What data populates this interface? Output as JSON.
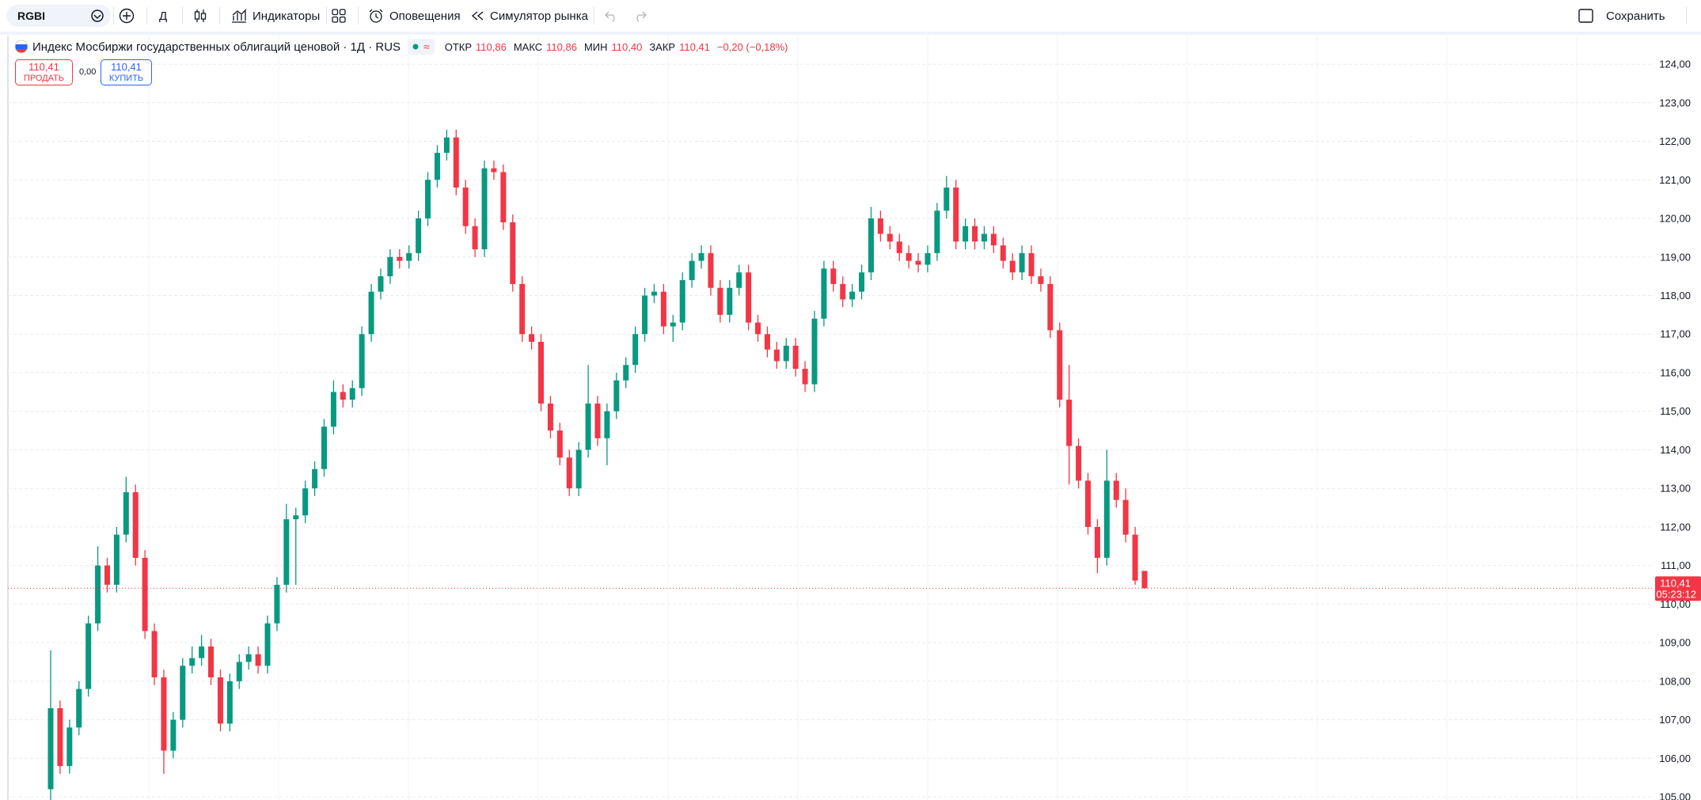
{
  "toolbar": {
    "symbol": "RGBI",
    "interval": "Д",
    "indicators": "Индикаторы",
    "alerts": "Оповещения",
    "replay": "Симулятор рынка",
    "save": "Сохранить"
  },
  "legend": {
    "title": "Индекс Мосбиржи государственных облигаций ценовой · 1Д · RUS",
    "open_label": "ОТКР",
    "open": "110,86",
    "high_label": "МАКС",
    "high": "110,86",
    "low_label": "МИН",
    "low": "110,40",
    "close_label": "ЗАКР",
    "close": "110,41",
    "change": "−0,20 (−0,18%)"
  },
  "trade": {
    "sell_price": "110,41",
    "sell": "ПРОДАТЬ",
    "spread": "0,00",
    "buy_price": "110,41",
    "buy": "КУПИТЬ"
  },
  "chart_data": {
    "type": "candlestick",
    "up_color": "#089981",
    "down_color": "#f23645",
    "candles": [
      [
        105.2,
        108.8,
        104.9,
        107.3
      ],
      [
        107.3,
        107.5,
        105.6,
        105.8
      ],
      [
        105.8,
        107.0,
        105.6,
        106.8
      ],
      [
        106.8,
        108.0,
        106.6,
        107.8
      ],
      [
        107.8,
        109.7,
        107.6,
        109.5
      ],
      [
        109.5,
        111.5,
        109.3,
        111.0
      ],
      [
        111.0,
        111.2,
        110.3,
        110.5
      ],
      [
        110.5,
        112.0,
        110.3,
        111.8
      ],
      [
        111.8,
        113.3,
        111.6,
        112.9
      ],
      [
        112.9,
        113.1,
        111.0,
        111.2
      ],
      [
        111.2,
        111.4,
        109.1,
        109.3
      ],
      [
        109.3,
        109.5,
        107.9,
        108.1
      ],
      [
        108.1,
        108.3,
        105.6,
        106.2
      ],
      [
        106.2,
        107.2,
        106.0,
        107.0
      ],
      [
        107.0,
        108.6,
        106.8,
        108.4
      ],
      [
        108.4,
        108.9,
        108.2,
        108.6
      ],
      [
        108.6,
        109.2,
        108.4,
        108.9
      ],
      [
        108.9,
        109.1,
        107.9,
        108.1
      ],
      [
        108.1,
        108.3,
        106.7,
        106.9
      ],
      [
        106.9,
        108.2,
        106.7,
        108.0
      ],
      [
        108.0,
        108.7,
        107.8,
        108.5
      ],
      [
        108.5,
        108.9,
        108.3,
        108.7
      ],
      [
        108.7,
        108.9,
        108.2,
        108.4
      ],
      [
        108.4,
        109.7,
        108.2,
        109.5
      ],
      [
        109.5,
        110.7,
        109.3,
        110.5
      ],
      [
        110.5,
        112.6,
        110.3,
        112.2
      ],
      [
        112.2,
        112.5,
        110.5,
        112.3
      ],
      [
        112.3,
        113.2,
        112.1,
        113.0
      ],
      [
        113.0,
        113.7,
        112.8,
        113.5
      ],
      [
        113.5,
        114.8,
        113.3,
        114.6
      ],
      [
        114.6,
        115.8,
        114.4,
        115.5
      ],
      [
        115.5,
        115.7,
        115.1,
        115.3
      ],
      [
        115.3,
        115.8,
        115.1,
        115.6
      ],
      [
        115.6,
        117.2,
        115.4,
        117.0
      ],
      [
        117.0,
        118.3,
        116.8,
        118.1
      ],
      [
        118.1,
        118.7,
        117.9,
        118.5
      ],
      [
        118.5,
        119.2,
        118.3,
        119.0
      ],
      [
        119.0,
        119.2,
        118.7,
        118.9
      ],
      [
        118.9,
        119.3,
        118.7,
        119.1
      ],
      [
        119.1,
        120.2,
        118.9,
        120.0
      ],
      [
        120.0,
        121.2,
        119.8,
        121.0
      ],
      [
        121.0,
        121.9,
        120.8,
        121.7
      ],
      [
        121.7,
        122.3,
        121.5,
        122.1
      ],
      [
        122.1,
        122.3,
        120.6,
        120.8
      ],
      [
        120.8,
        121.0,
        119.6,
        119.8
      ],
      [
        119.8,
        120.0,
        119.0,
        119.2
      ],
      [
        119.2,
        121.5,
        119.0,
        121.3
      ],
      [
        121.3,
        121.5,
        121.0,
        121.2
      ],
      [
        121.2,
        121.4,
        119.7,
        119.9
      ],
      [
        119.9,
        120.1,
        118.1,
        118.3
      ],
      [
        118.3,
        118.5,
        116.8,
        117.0
      ],
      [
        117.0,
        117.2,
        116.6,
        116.8
      ],
      [
        116.8,
        117.0,
        115.0,
        115.2
      ],
      [
        115.2,
        115.4,
        114.3,
        114.5
      ],
      [
        114.5,
        114.7,
        113.6,
        113.8
      ],
      [
        113.8,
        114.0,
        112.8,
        113.0
      ],
      [
        113.0,
        114.2,
        112.8,
        114.0
      ],
      [
        114.0,
        116.2,
        113.8,
        115.2
      ],
      [
        115.2,
        115.4,
        114.1,
        114.3
      ],
      [
        114.3,
        115.2,
        113.6,
        115.0
      ],
      [
        115.0,
        116.0,
        114.8,
        115.8
      ],
      [
        115.8,
        116.4,
        115.6,
        116.2
      ],
      [
        116.2,
        117.2,
        116.0,
        117.0
      ],
      [
        117.0,
        118.2,
        116.8,
        118.0
      ],
      [
        118.0,
        118.3,
        117.8,
        118.1
      ],
      [
        118.1,
        118.3,
        117.0,
        117.2
      ],
      [
        117.2,
        117.5,
        116.8,
        117.3
      ],
      [
        117.3,
        118.6,
        117.1,
        118.4
      ],
      [
        118.4,
        119.1,
        118.2,
        118.9
      ],
      [
        118.9,
        119.3,
        118.7,
        119.1
      ],
      [
        119.1,
        119.3,
        118.0,
        118.2
      ],
      [
        118.2,
        118.4,
        117.3,
        117.5
      ],
      [
        117.5,
        118.4,
        117.3,
        118.2
      ],
      [
        118.2,
        118.8,
        118.0,
        118.6
      ],
      [
        118.6,
        118.8,
        117.1,
        117.3
      ],
      [
        117.3,
        117.5,
        116.8,
        117.0
      ],
      [
        117.0,
        117.2,
        116.4,
        116.6
      ],
      [
        116.6,
        116.8,
        116.1,
        116.3
      ],
      [
        116.3,
        116.9,
        116.1,
        116.7
      ],
      [
        116.7,
        116.9,
        115.9,
        116.1
      ],
      [
        116.1,
        116.3,
        115.5,
        115.7
      ],
      [
        115.7,
        117.6,
        115.5,
        117.4
      ],
      [
        117.4,
        118.9,
        117.2,
        118.7
      ],
      [
        118.7,
        118.9,
        118.1,
        118.3
      ],
      [
        118.3,
        118.5,
        117.7,
        117.9
      ],
      [
        117.9,
        118.3,
        117.7,
        118.1
      ],
      [
        118.1,
        118.8,
        117.9,
        118.6
      ],
      [
        118.6,
        120.3,
        118.4,
        120.0
      ],
      [
        120.0,
        120.2,
        119.4,
        119.6
      ],
      [
        119.6,
        119.8,
        119.2,
        119.4
      ],
      [
        119.4,
        119.6,
        118.9,
        119.1
      ],
      [
        119.1,
        119.3,
        118.7,
        118.9
      ],
      [
        118.9,
        119.1,
        118.6,
        118.8
      ],
      [
        118.8,
        119.3,
        118.6,
        119.1
      ],
      [
        119.1,
        120.4,
        118.9,
        120.2
      ],
      [
        120.2,
        121.1,
        120.0,
        120.8
      ],
      [
        120.8,
        121.0,
        119.2,
        119.4
      ],
      [
        119.4,
        120.0,
        119.2,
        119.8
      ],
      [
        119.8,
        120.0,
        119.2,
        119.4
      ],
      [
        119.4,
        119.8,
        119.2,
        119.6
      ],
      [
        119.6,
        119.8,
        119.1,
        119.3
      ],
      [
        119.3,
        119.5,
        118.7,
        118.9
      ],
      [
        118.9,
        119.1,
        118.4,
        118.6
      ],
      [
        118.6,
        119.3,
        118.4,
        119.1
      ],
      [
        119.1,
        119.3,
        118.3,
        118.5
      ],
      [
        118.5,
        118.7,
        118.1,
        118.3
      ],
      [
        118.3,
        118.5,
        116.9,
        117.1
      ],
      [
        117.1,
        117.3,
        115.1,
        115.3
      ],
      [
        115.3,
        116.2,
        113.1,
        114.1
      ],
      [
        114.1,
        114.3,
        113.0,
        113.2
      ],
      [
        113.2,
        113.4,
        111.8,
        112.0
      ],
      [
        112.0,
        112.2,
        110.8,
        111.2
      ],
      [
        111.2,
        114.0,
        111.0,
        113.2
      ],
      [
        113.2,
        113.4,
        112.5,
        112.7
      ],
      [
        112.7,
        113.0,
        111.6,
        111.8
      ],
      [
        111.8,
        112.0,
        110.5,
        110.61
      ],
      [
        110.86,
        110.86,
        110.4,
        110.41
      ]
    ],
    "ylim": [
      104.92,
      124.74
    ],
    "yticks": [
      {
        "value": 105,
        "label": "105,00"
      },
      {
        "value": 106,
        "label": "106,00"
      },
      {
        "value": 107,
        "label": "107,00"
      },
      {
        "value": 108,
        "label": "108,00"
      },
      {
        "value": 109,
        "label": "109,00"
      },
      {
        "value": 110,
        "label": "110,00"
      },
      {
        "value": 111,
        "label": "111,00"
      },
      {
        "value": 112,
        "label": "112,00"
      },
      {
        "value": 113,
        "label": "113,00"
      },
      {
        "value": 114,
        "label": "114,00"
      },
      {
        "value": 115,
        "label": "115,00"
      },
      {
        "value": 116,
        "label": "116,00"
      },
      {
        "value": 117,
        "label": "117,00"
      },
      {
        "value": 118,
        "label": "118,00"
      },
      {
        "value": 119,
        "label": "119,00"
      },
      {
        "value": 120,
        "label": "120,00"
      },
      {
        "value": 121,
        "label": "121,00"
      },
      {
        "value": 122,
        "label": "122,00"
      },
      {
        "value": 123,
        "label": "123,00"
      },
      {
        "value": 124,
        "label": "124,00"
      }
    ],
    "grid": true,
    "last_price": {
      "value": 110.41,
      "label": "110,41"
    },
    "countdown": "05:23:12"
  }
}
